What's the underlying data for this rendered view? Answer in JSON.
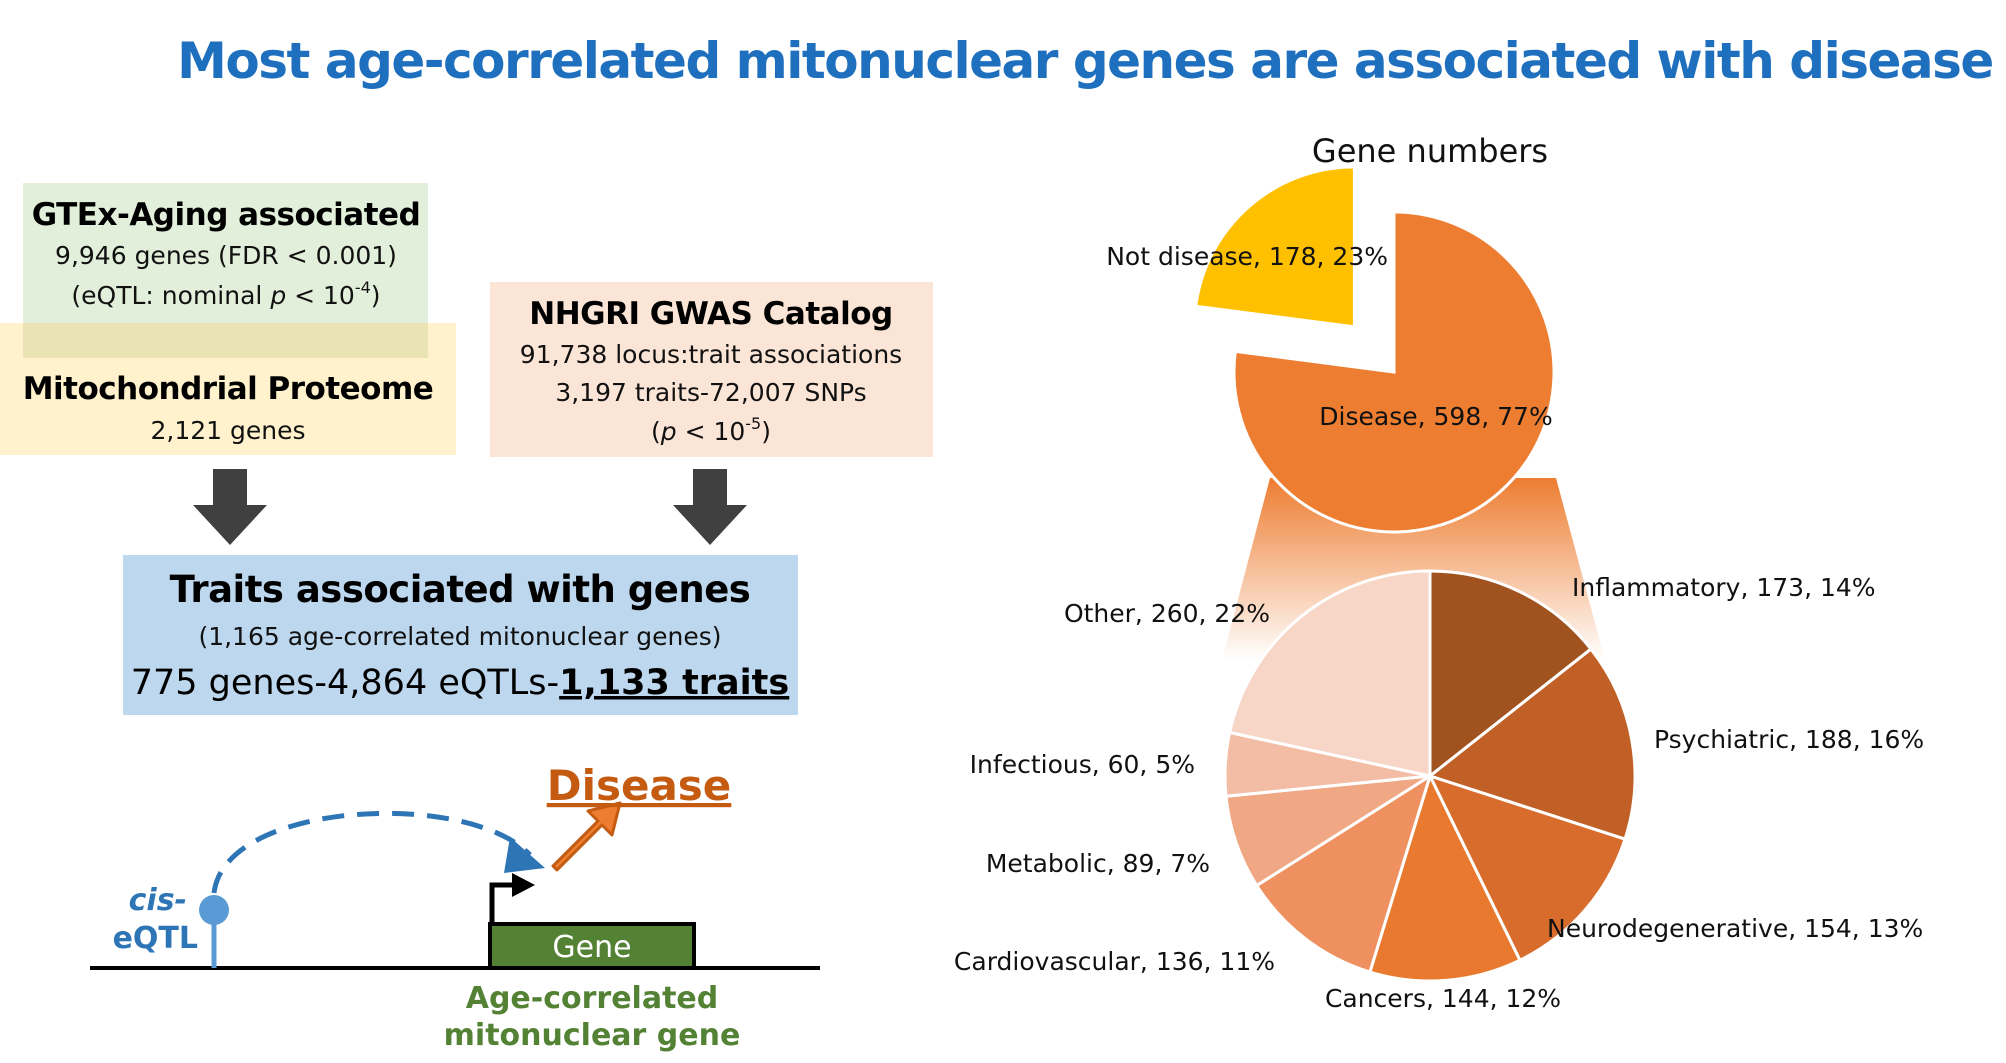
{
  "title": "Most age-correlated mitonuclear genes are associated with disease",
  "boxes": {
    "gtex": {
      "title": "GTEx-Aging associated",
      "line1": "9,946 genes (FDR < 0.001)",
      "line2_prefix": "(eQTL: nominal ",
      "line2_p": "p",
      "line2_mid": " < 10",
      "line2_exp": "-4",
      "line2_suffix": ")"
    },
    "mito": {
      "title": "Mitochondrial Proteome",
      "line1": "2,121 genes"
    },
    "gwas": {
      "title": "NHGRI GWAS Catalog",
      "line1": "91,738 locus:trait associations",
      "line2": "3,197 traits-72,007 SNPs",
      "line3_prefix": "(",
      "line3_p": "p",
      "line3_mid": " < 10",
      "line3_exp": "-5",
      "line3_suffix": ")"
    },
    "traits": {
      "title": "Traits associated with genes",
      "subtitle": "(1,165 age-correlated mitonuclear genes)",
      "summary_prefix": "775 genes-4,864 eQTLs-",
      "summary_bold": "1,133 traits"
    }
  },
  "schematic": {
    "cis": "cis-",
    "eqtl": "eQTL",
    "gene": "Gene",
    "gene_caption_1": "Age-correlated",
    "gene_caption_2": "mitonuclear gene",
    "disease": "Disease"
  },
  "colors": {
    "title": "#1F6FBF",
    "gtex_box": "#E2EFDA",
    "mito_box": "#FFF2CC",
    "gwas_box": "#FBE5D6",
    "traits_box": "#BDD7EE",
    "arrow": "#404040",
    "gene_green": "#548235",
    "disease_orange": "#C55A11",
    "eqtl_blue": "#2E75B6"
  },
  "chart_data": [
    {
      "type": "pie",
      "title": "Gene numbers",
      "slices": [
        {
          "label": "Disease, 598, 77%",
          "value": 598,
          "color": "#ED7D31"
        },
        {
          "label": "Not disease, 178, 23%",
          "value": 178,
          "color": "#FFC000"
        }
      ]
    },
    {
      "type": "pie",
      "title": "",
      "slices": [
        {
          "label": "Inflammatory, 173, 14%",
          "value": 173,
          "color": "#A0521F"
        },
        {
          "label": "Psychiatric, 188, 16%",
          "value": 188,
          "color": "#C06026"
        },
        {
          "label": "Neurodegenerative, 154, 13%",
          "value": 154,
          "color": "#D86C2C"
        },
        {
          "label": "Cancers, 144, 12%",
          "value": 144,
          "color": "#E8792F"
        },
        {
          "label": "Cardiovascular, 136, 11%",
          "value": 136,
          "color": "#EF9060"
        },
        {
          "label": "Metabolic, 89, 7%",
          "value": 89,
          "color": "#F0A784"
        },
        {
          "label": "Infectious, 60, 5%",
          "value": 60,
          "color": "#F3BDA5"
        },
        {
          "label": "Other, 260, 22%",
          "value": 260,
          "color": "#F7D5C7"
        }
      ]
    }
  ]
}
